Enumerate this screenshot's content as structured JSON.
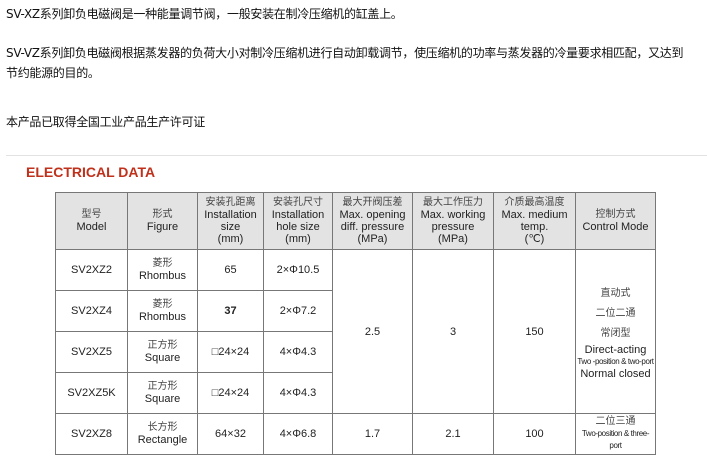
{
  "intro": {
    "line1": "SV-XZ系列卸负电磁阀是一种能量调节阀，一般安装在制冷压缩机的缸盖上。",
    "line2a": "SV-VZ系列卸负电磁阀根据蒸发器的负荷大小对制冷压缩机进行自动卸载调节，使压缩机的功率与蒸发器的冷量要求相匹配，又达到",
    "line2b": "节约能源的目的。",
    "line3": "本产品已取得全国工业产品生产许可证"
  },
  "section_title": "ELECTRICAL DATA",
  "colors": {
    "title": "#c0311c",
    "header_bg": "#e3e3e3"
  },
  "table": {
    "headers": [
      {
        "zh": "型号",
        "en": [
          "Model"
        ]
      },
      {
        "zh": "形式",
        "en": [
          "Figure"
        ]
      },
      {
        "zh": "安装孔距离",
        "en": [
          "Installation size",
          "(mm)"
        ]
      },
      {
        "zh": "安装孔尺寸",
        "en": [
          "Installation",
          "hole size",
          "(mm)"
        ]
      },
      {
        "zh": "最大开阀压差",
        "en": [
          "Max. opening",
          "diff. pressure",
          "(MPa)"
        ]
      },
      {
        "zh": "最大工作压力",
        "en": [
          "Max. working",
          "pressure",
          "(MPa)"
        ]
      },
      {
        "zh": "介质最高温度",
        "en": [
          "Max. medium",
          "temp.",
          "(℃)"
        ]
      },
      {
        "zh": "控制方式",
        "en": [
          "Control Mode"
        ]
      }
    ],
    "rows": [
      {
        "model": "SV2XZ2",
        "fig_zh": "菱形",
        "fig_en": "Rhombus",
        "size": "65",
        "hole": "2×Φ10.5"
      },
      {
        "model": "SV2XZ4",
        "fig_zh": "菱形",
        "fig_en": "Rhombus",
        "size": "37",
        "hole": "2×Φ7.2"
      },
      {
        "model": "SV2XZ5",
        "fig_zh": "正方形",
        "fig_en": "Square",
        "size": "□24×24",
        "hole": "4×Φ4.3"
      },
      {
        "model": "SV2XZ5K",
        "fig_zh": "正方形",
        "fig_en": "Square",
        "size": "□24×24",
        "hole": "4×Φ4.3"
      },
      {
        "model": "SV2XZ8",
        "fig_zh": "长方形",
        "fig_en": "Rectangle",
        "size": "64×32",
        "hole": "4×Φ6.8"
      }
    ],
    "group1": {
      "open_diff": "2.5",
      "work_pressure": "3",
      "temp": "150",
      "control": [
        "直动式",
        "二位二通",
        "常闭型",
        "Direct-acting",
        "Two -position & two-port",
        "Normal closed"
      ]
    },
    "group2": {
      "open_diff": "1.7",
      "work_pressure": "2.1",
      "temp": "100",
      "control": [
        "二位三通",
        "Two-position & three-port"
      ]
    }
  }
}
